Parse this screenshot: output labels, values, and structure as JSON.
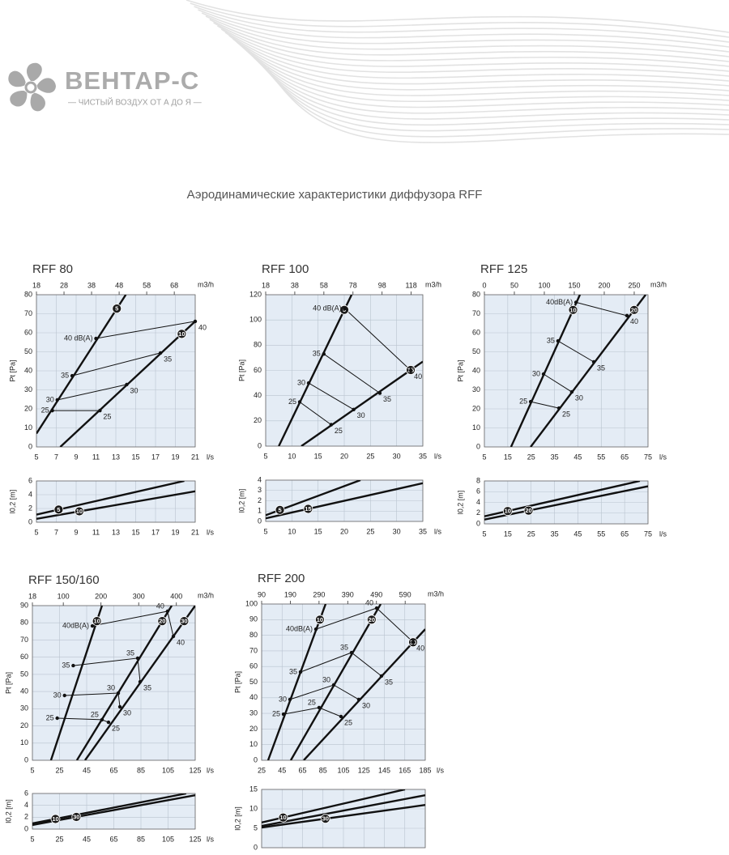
{
  "header": {
    "logo": "ВЕНТАР-С",
    "tagline": "— ЧИСТЫЙ ВОЗДУХ ОТ А ДО Я —"
  },
  "title": "Аэродинамические характеристики диффузора RFF",
  "chart_data": [
    {
      "type": "line",
      "title": "RFF 80",
      "xlabel": "l/s",
      "x2label": "m3/h",
      "ylabel": "Pt [Pa]",
      "xlim": [
        5,
        21
      ],
      "xticks": [
        5,
        7,
        9,
        11,
        13,
        15,
        17,
        19,
        21
      ],
      "x2lim": [
        18,
        75.6
      ],
      "x2ticks": [
        18,
        28,
        38,
        48,
        58,
        68
      ],
      "ylim": [
        0,
        80
      ],
      "yticks": [
        0,
        10,
        20,
        30,
        40,
        50,
        60,
        70,
        80
      ],
      "grid": true,
      "series": [
        {
          "name": "5",
          "color": "#111111",
          "x": [
            5,
            14
          ],
          "values": [
            7,
            80
          ]
        },
        {
          "name": "10",
          "color": "#111111",
          "x": [
            7.4,
            21
          ],
          "values": [
            0,
            66
          ]
        }
      ],
      "noise": [
        {
          "x": [
            11,
            21
          ],
          "values": [
            57,
            66
          ],
          "labels": [
            "40 dB(A)",
            "40"
          ]
        },
        {
          "x": [
            8.6,
            17.5
          ],
          "values": [
            37.4,
            49.4
          ],
          "labels": [
            "35",
            "35"
          ]
        },
        {
          "x": [
            7.1,
            14.1
          ],
          "values": [
            24.7,
            32.8
          ],
          "labels": [
            "30",
            "30"
          ]
        },
        {
          "x": [
            6.6,
            11.4
          ],
          "values": [
            19.1,
            19.1
          ],
          "labels": [
            "25",
            "25"
          ]
        }
      ],
      "throw": {
        "type": "line",
        "xlabel": "l/s",
        "ylabel": "l0,2 [m]",
        "xlim": [
          5,
          21
        ],
        "xticks": [
          5,
          7,
          9,
          11,
          13,
          15,
          17,
          19,
          21
        ],
        "ylim": [
          0,
          6
        ],
        "yticks": [
          0,
          2,
          4,
          6
        ],
        "grid": true,
        "series": [
          {
            "name": "5",
            "color": "#111111",
            "x": [
              5,
              19.9
            ],
            "values": [
              1.1,
              6
            ]
          },
          {
            "name": "10",
            "color": "#111111",
            "x": [
              5,
              21
            ],
            "values": [
              0.5,
              4.5
            ]
          }
        ]
      }
    },
    {
      "type": "line",
      "title": "RFF 100",
      "xlabel": "l/s",
      "x2label": "m3/h",
      "ylabel": "Pt [Pa]",
      "xlim": [
        5,
        35
      ],
      "xticks": [
        5,
        10,
        15,
        20,
        25,
        30,
        35
      ],
      "x2lim": [
        18,
        126
      ],
      "x2ticks": [
        18,
        38,
        58,
        78,
        98,
        118
      ],
      "ylim": [
        0,
        120
      ],
      "yticks": [
        0,
        20,
        40,
        60,
        80,
        100,
        120
      ],
      "grid": true,
      "series": [
        {
          "name": "5",
          "color": "#111111",
          "x": [
            7.5,
            21.4
          ],
          "values": [
            0,
            120
          ]
        },
        {
          "name": "15",
          "color": "#111111",
          "x": [
            11.8,
            35
          ],
          "values": [
            0,
            67
          ]
        }
      ],
      "noise": [
        {
          "x": [
            20.1,
            32.7
          ],
          "values": [
            109,
            60
          ],
          "labels": [
            "40 dB(A)",
            "40"
          ]
        },
        {
          "x": [
            16.1,
            26.8
          ],
          "values": [
            73,
            42
          ],
          "labels": [
            "35",
            "35"
          ]
        },
        {
          "x": [
            13.2,
            21.8
          ],
          "values": [
            50,
            29
          ],
          "labels": [
            "30",
            "30"
          ]
        },
        {
          "x": [
            11.5,
            17.5
          ],
          "values": [
            35,
            17
          ],
          "labels": [
            "25",
            "25"
          ]
        }
      ],
      "throw": {
        "type": "line",
        "xlabel": "l/s",
        "ylabel": "l0,2 [m]",
        "xlim": [
          5,
          35
        ],
        "xticks": [
          5,
          10,
          15,
          20,
          25,
          30,
          35
        ],
        "ylim": [
          0,
          4
        ],
        "yticks": [
          0,
          1,
          2,
          3,
          4
        ],
        "grid": true,
        "series": [
          {
            "name": "5",
            "color": "#111111",
            "x": [
              5,
              23.1
            ],
            "values": [
              0.6,
              4
            ]
          },
          {
            "name": "15",
            "color": "#111111",
            "x": [
              5,
              35
            ],
            "values": [
              0.3,
              3.7
            ]
          }
        ]
      }
    },
    {
      "type": "line",
      "title": "RFF 125",
      "xlabel": "l/s",
      "x2label": "m3/h",
      "ylabel": "Pt [Pa]",
      "xlim": [
        5,
        75
      ],
      "xticks": [
        5,
        15,
        25,
        35,
        45,
        55,
        65,
        75
      ],
      "x2lim": [
        0,
        273
      ],
      "x2ticks": [
        0,
        50,
        100,
        150,
        200,
        250
      ],
      "ylim": [
        0,
        80
      ],
      "yticks": [
        0,
        10,
        20,
        30,
        40,
        50,
        60,
        70,
        80
      ],
      "grid": true,
      "series": [
        {
          "name": "10",
          "color": "#111111",
          "x": [
            16.4,
            45.9
          ],
          "values": [
            0,
            80
          ]
        },
        {
          "name": "20",
          "color": "#111111",
          "x": [
            24.8,
            74
          ],
          "values": [
            0,
            80
          ]
        }
      ],
      "noise": [
        {
          "x": [
            44.2,
            66
          ],
          "values": [
            76,
            69
          ],
          "labels": [
            "40dB(A)",
            "40"
          ]
        },
        {
          "x": [
            36.5,
            51.8
          ],
          "values": [
            55.7,
            44.7
          ],
          "labels": [
            "35",
            "35"
          ]
        },
        {
          "x": [
            30.3,
            42.4
          ],
          "values": [
            38.3,
            28.9
          ],
          "labels": [
            "30",
            "30"
          ]
        },
        {
          "x": [
            24.8,
            36.9
          ],
          "values": [
            23.8,
            20.4
          ],
          "labels": [
            "25",
            "25"
          ]
        }
      ],
      "throw": {
        "type": "line",
        "xlabel": "l/s",
        "ylabel": "l0,2 [m]",
        "xlim": [
          5,
          75
        ],
        "xticks": [
          5,
          15,
          25,
          35,
          45,
          55,
          65,
          75
        ],
        "ylim": [
          0,
          8
        ],
        "yticks": [
          0,
          2,
          4,
          6,
          8
        ],
        "grid": true,
        "series": [
          {
            "name": "10",
            "color": "#111111",
            "x": [
              5,
              71.5
            ],
            "values": [
              1.4,
              8
            ]
          },
          {
            "name": "20",
            "color": "#111111",
            "x": [
              5,
              75
            ],
            "values": [
              0.8,
              7
            ]
          }
        ]
      }
    },
    {
      "type": "line",
      "title": "RFF 150/160",
      "xlabel": "l/s",
      "x2label": "m3/h",
      "ylabel": "Pt [Pa]",
      "xlim": [
        5,
        125
      ],
      "xticks": [
        5,
        25,
        45,
        65,
        85,
        105,
        125
      ],
      "x2lim": [
        18,
        450
      ],
      "x2ticks": [
        18,
        100,
        200,
        300,
        400
      ],
      "ylim": [
        0,
        90
      ],
      "yticks": [
        0,
        10,
        20,
        30,
        40,
        50,
        60,
        70,
        80,
        90
      ],
      "grid": true,
      "series": [
        {
          "name": "10",
          "color": "#111111",
          "x": [
            18.7,
            56.3
          ],
          "values": [
            0,
            90
          ]
        },
        {
          "name": "20",
          "color": "#111111",
          "x": [
            37.8,
            107.7
          ],
          "values": [
            0,
            90
          ]
        },
        {
          "name": "30",
          "color": "#111111",
          "x": [
            43.8,
            125
          ],
          "values": [
            0,
            90
          ]
        }
      ],
      "noise": [
        {
          "x": [
            49.2,
            104.6,
            108.9
          ],
          "values": [
            78.2,
            86.7,
            72.1
          ],
          "labels": [
            "40dB(A)",
            "40",
            "40"
          ]
        },
        {
          "x": [
            35.1,
            82.6,
            84.4
          ],
          "values": [
            55.1,
            59.4,
            45.7
          ],
          "labels": [
            "35",
            "35",
            "35"
          ]
        },
        {
          "x": [
            28.7,
            68.3,
            69.5
          ],
          "values": [
            37.7,
            39.1,
            31.1
          ],
          "labels": [
            "30",
            "30",
            "30"
          ]
        },
        {
          "x": [
            23.3,
            56.3,
            61.1
          ],
          "values": [
            24.5,
            23.6,
            22.1
          ],
          "labels": [
            "25",
            "25",
            "25"
          ]
        }
      ],
      "throw": {
        "type": "line",
        "xlabel": "l/s",
        "ylabel": "l0,2 [m]",
        "xlim": [
          5,
          125
        ],
        "xticks": [
          5,
          25,
          45,
          65,
          85,
          105,
          125
        ],
        "ylim": [
          0,
          6
        ],
        "yticks": [
          0,
          2,
          4,
          6
        ],
        "grid": true,
        "series": [
          {
            "name": "10",
            "color": "#111111",
            "x": [
              5,
              118.4
            ],
            "values": [
              0.95,
              6
            ]
          },
          {
            "name": "30",
            "color": "#111111",
            "x": [
              5,
              125
            ],
            "values": [
              0.7,
              5.7
            ]
          }
        ]
      }
    },
    {
      "type": "line",
      "title": "RFF 200",
      "xlabel": "l/s",
      "x2label": "m3/h",
      "ylabel": "Pt [Pa]",
      "xlim": [
        25,
        185
      ],
      "xticks": [
        25,
        45,
        65,
        85,
        105,
        125,
        145,
        165,
        185
      ],
      "x2lim": [
        90,
        660
      ],
      "x2ticks": [
        90,
        190,
        290,
        390,
        490,
        590
      ],
      "ylim": [
        0,
        100
      ],
      "yticks": [
        0,
        10,
        20,
        30,
        40,
        50,
        60,
        70,
        80,
        90,
        100
      ],
      "grid": true,
      "series": [
        {
          "name": "10",
          "color": "#111111",
          "x": [
            31.3,
            87.6
          ],
          "values": [
            0,
            100
          ]
        },
        {
          "name": "20",
          "color": "#111111",
          "x": [
            53.5,
            141.4
          ],
          "values": [
            0,
            100
          ]
        },
        {
          "name": "30",
          "color": "#111111",
          "x": [
            66.2,
            185
          ],
          "values": [
            0,
            83.9
          ]
        }
      ],
      "noise": [
        {
          "x": [
            78.1,
            137.5,
            173.2
          ],
          "values": [
            83.9,
            97.4,
            75.6
          ],
          "labels": [
            "40dB(A)",
            "40",
            "40"
          ]
        },
        {
          "x": [
            63,
            112.9,
            142.2
          ],
          "values": [
            56.5,
            68.9,
            53.9
          ],
          "labels": [
            "35",
            "35",
            "35"
          ]
        },
        {
          "x": [
            52.7,
            95.5,
            120
          ],
          "values": [
            38.9,
            48.2,
            38.9
          ],
          "labels": [
            "30",
            "30",
            "30"
          ]
        },
        {
          "x": [
            46.4,
            81.2,
            102.6
          ],
          "values": [
            29.5,
            33.7,
            28
          ],
          "labels": [
            "25",
            "25",
            "25"
          ]
        }
      ],
      "throw": {
        "type": "line",
        "xlabel": "l/s",
        "ylabel": "l0,2 [m]",
        "xlim": [
          25,
          185
        ],
        "xticks": [
          25,
          45,
          65,
          85,
          105,
          125,
          145,
          165,
          185
        ],
        "ylim": [
          0,
          15
        ],
        "yticks": [
          0,
          5,
          10,
          15
        ],
        "grid": true,
        "series": [
          {
            "name": "10",
            "color": "#111111",
            "x": [
              25,
              165.2
            ],
            "values": [
              6.5,
              15
            ]
          },
          {
            "color": "#111111",
            "x": [
              25,
              185
            ],
            "values": [
              5.6,
              13.5
            ]
          },
          {
            "name": "30",
            "color": "#111111",
            "x": [
              25,
              185
            ],
            "values": [
              5.2,
              11
            ]
          }
        ]
      }
    }
  ]
}
